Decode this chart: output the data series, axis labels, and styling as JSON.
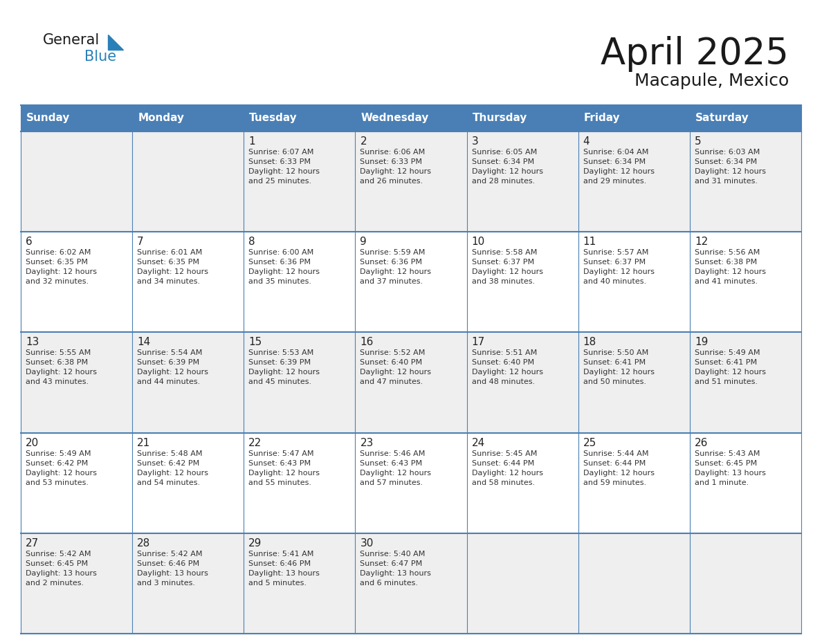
{
  "title": "April 2025",
  "subtitle": "Macapule, Mexico",
  "days_of_week": [
    "Sunday",
    "Monday",
    "Tuesday",
    "Wednesday",
    "Thursday",
    "Friday",
    "Saturday"
  ],
  "header_bg": "#4a7fb5",
  "header_text": "#ffffff",
  "row_bg_light": "#efefef",
  "row_bg_white": "#ffffff",
  "cell_text_color": "#333333",
  "day_num_color": "#222222",
  "grid_line_color": "#4a7fb5",
  "title_color": "#1a1a1a",
  "subtitle_color": "#1a1a1a",
  "logo_general_color": "#1a1a1a",
  "logo_blue_color": "#2980b9",
  "logo_tri_color": "#2980b9",
  "weeks": [
    [
      {
        "day": null,
        "data": null
      },
      {
        "day": null,
        "data": null
      },
      {
        "day": 1,
        "data": {
          "sunrise": "6:07 AM",
          "sunset": "6:33 PM",
          "daylight": "12 hours",
          "daylight2": "and 25 minutes."
        }
      },
      {
        "day": 2,
        "data": {
          "sunrise": "6:06 AM",
          "sunset": "6:33 PM",
          "daylight": "12 hours",
          "daylight2": "and 26 minutes."
        }
      },
      {
        "day": 3,
        "data": {
          "sunrise": "6:05 AM",
          "sunset": "6:34 PM",
          "daylight": "12 hours",
          "daylight2": "and 28 minutes."
        }
      },
      {
        "day": 4,
        "data": {
          "sunrise": "6:04 AM",
          "sunset": "6:34 PM",
          "daylight": "12 hours",
          "daylight2": "and 29 minutes."
        }
      },
      {
        "day": 5,
        "data": {
          "sunrise": "6:03 AM",
          "sunset": "6:34 PM",
          "daylight": "12 hours",
          "daylight2": "and 31 minutes."
        }
      }
    ],
    [
      {
        "day": 6,
        "data": {
          "sunrise": "6:02 AM",
          "sunset": "6:35 PM",
          "daylight": "12 hours",
          "daylight2": "and 32 minutes."
        }
      },
      {
        "day": 7,
        "data": {
          "sunrise": "6:01 AM",
          "sunset": "6:35 PM",
          "daylight": "12 hours",
          "daylight2": "and 34 minutes."
        }
      },
      {
        "day": 8,
        "data": {
          "sunrise": "6:00 AM",
          "sunset": "6:36 PM",
          "daylight": "12 hours",
          "daylight2": "and 35 minutes."
        }
      },
      {
        "day": 9,
        "data": {
          "sunrise": "5:59 AM",
          "sunset": "6:36 PM",
          "daylight": "12 hours",
          "daylight2": "and 37 minutes."
        }
      },
      {
        "day": 10,
        "data": {
          "sunrise": "5:58 AM",
          "sunset": "6:37 PM",
          "daylight": "12 hours",
          "daylight2": "and 38 minutes."
        }
      },
      {
        "day": 11,
        "data": {
          "sunrise": "5:57 AM",
          "sunset": "6:37 PM",
          "daylight": "12 hours",
          "daylight2": "and 40 minutes."
        }
      },
      {
        "day": 12,
        "data": {
          "sunrise": "5:56 AM",
          "sunset": "6:38 PM",
          "daylight": "12 hours",
          "daylight2": "and 41 minutes."
        }
      }
    ],
    [
      {
        "day": 13,
        "data": {
          "sunrise": "5:55 AM",
          "sunset": "6:38 PM",
          "daylight": "12 hours",
          "daylight2": "and 43 minutes."
        }
      },
      {
        "day": 14,
        "data": {
          "sunrise": "5:54 AM",
          "sunset": "6:39 PM",
          "daylight": "12 hours",
          "daylight2": "and 44 minutes."
        }
      },
      {
        "day": 15,
        "data": {
          "sunrise": "5:53 AM",
          "sunset": "6:39 PM",
          "daylight": "12 hours",
          "daylight2": "and 45 minutes."
        }
      },
      {
        "day": 16,
        "data": {
          "sunrise": "5:52 AM",
          "sunset": "6:40 PM",
          "daylight": "12 hours",
          "daylight2": "and 47 minutes."
        }
      },
      {
        "day": 17,
        "data": {
          "sunrise": "5:51 AM",
          "sunset": "6:40 PM",
          "daylight": "12 hours",
          "daylight2": "and 48 minutes."
        }
      },
      {
        "day": 18,
        "data": {
          "sunrise": "5:50 AM",
          "sunset": "6:41 PM",
          "daylight": "12 hours",
          "daylight2": "and 50 minutes."
        }
      },
      {
        "day": 19,
        "data": {
          "sunrise": "5:49 AM",
          "sunset": "6:41 PM",
          "daylight": "12 hours",
          "daylight2": "and 51 minutes."
        }
      }
    ],
    [
      {
        "day": 20,
        "data": {
          "sunrise": "5:49 AM",
          "sunset": "6:42 PM",
          "daylight": "12 hours",
          "daylight2": "and 53 minutes."
        }
      },
      {
        "day": 21,
        "data": {
          "sunrise": "5:48 AM",
          "sunset": "6:42 PM",
          "daylight": "12 hours",
          "daylight2": "and 54 minutes."
        }
      },
      {
        "day": 22,
        "data": {
          "sunrise": "5:47 AM",
          "sunset": "6:43 PM",
          "daylight": "12 hours",
          "daylight2": "and 55 minutes."
        }
      },
      {
        "day": 23,
        "data": {
          "sunrise": "5:46 AM",
          "sunset": "6:43 PM",
          "daylight": "12 hours",
          "daylight2": "and 57 minutes."
        }
      },
      {
        "day": 24,
        "data": {
          "sunrise": "5:45 AM",
          "sunset": "6:44 PM",
          "daylight": "12 hours",
          "daylight2": "and 58 minutes."
        }
      },
      {
        "day": 25,
        "data": {
          "sunrise": "5:44 AM",
          "sunset": "6:44 PM",
          "daylight": "12 hours",
          "daylight2": "and 59 minutes."
        }
      },
      {
        "day": 26,
        "data": {
          "sunrise": "5:43 AM",
          "sunset": "6:45 PM",
          "daylight": "13 hours",
          "daylight2": "and 1 minute."
        }
      }
    ],
    [
      {
        "day": 27,
        "data": {
          "sunrise": "5:42 AM",
          "sunset": "6:45 PM",
          "daylight": "13 hours",
          "daylight2": "and 2 minutes."
        }
      },
      {
        "day": 28,
        "data": {
          "sunrise": "5:42 AM",
          "sunset": "6:46 PM",
          "daylight": "13 hours",
          "daylight2": "and 3 minutes."
        }
      },
      {
        "day": 29,
        "data": {
          "sunrise": "5:41 AM",
          "sunset": "6:46 PM",
          "daylight": "13 hours",
          "daylight2": "and 5 minutes."
        }
      },
      {
        "day": 30,
        "data": {
          "sunrise": "5:40 AM",
          "sunset": "6:47 PM",
          "daylight": "13 hours",
          "daylight2": "and 6 minutes."
        }
      },
      {
        "day": null,
        "data": null
      },
      {
        "day": null,
        "data": null
      },
      {
        "day": null,
        "data": null
      }
    ]
  ]
}
